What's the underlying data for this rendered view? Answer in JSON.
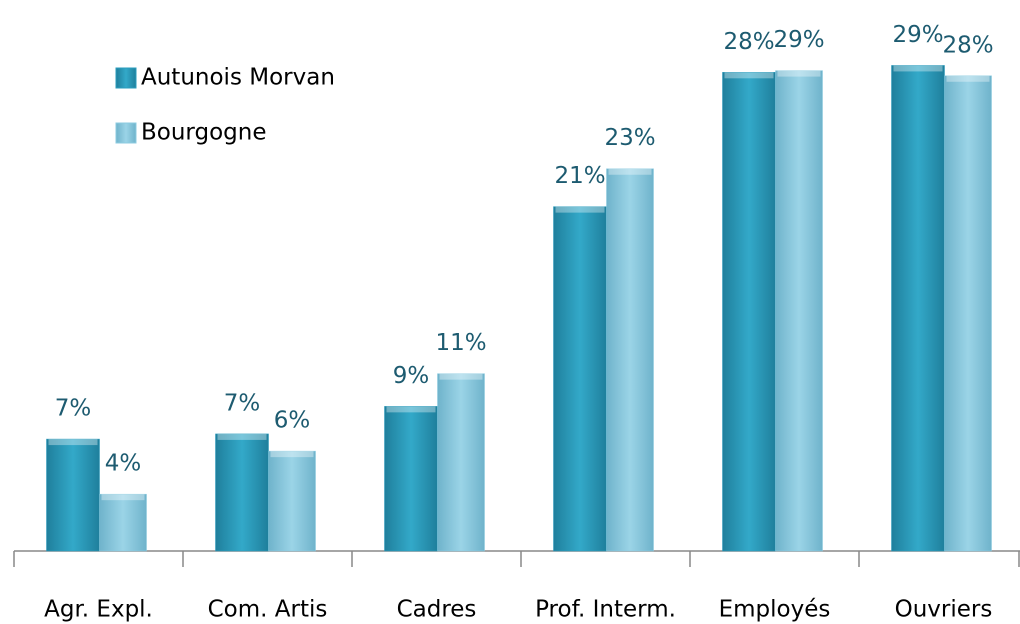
{
  "chart_data": {
    "type": "bar",
    "categories": [
      "Agr. Expl.",
      "Com. Artis",
      "Cadres",
      "Prof. Interm.",
      "Employés",
      "Ouvriers"
    ],
    "series": [
      {
        "name": "Autunois Morvan",
        "color": "#2a9cbd",
        "values": [
          7.1,
          7.4,
          9,
          20.6,
          28.4,
          28.8
        ],
        "value_labels": [
          "7%",
          "7%",
          "9%",
          "21%",
          "28%",
          "29%"
        ]
      },
      {
        "name": "Bourgogne",
        "color": "#8ccbe0",
        "values": [
          3.9,
          6.4,
          10.9,
          22.8,
          28.5,
          28.2
        ],
        "value_labels": [
          "4%",
          "6%",
          "11%",
          "23%",
          "29%",
          "28%"
        ]
      }
    ],
    "ylim": [
      0.6,
      32.6
    ],
    "legend": "upper left"
  }
}
